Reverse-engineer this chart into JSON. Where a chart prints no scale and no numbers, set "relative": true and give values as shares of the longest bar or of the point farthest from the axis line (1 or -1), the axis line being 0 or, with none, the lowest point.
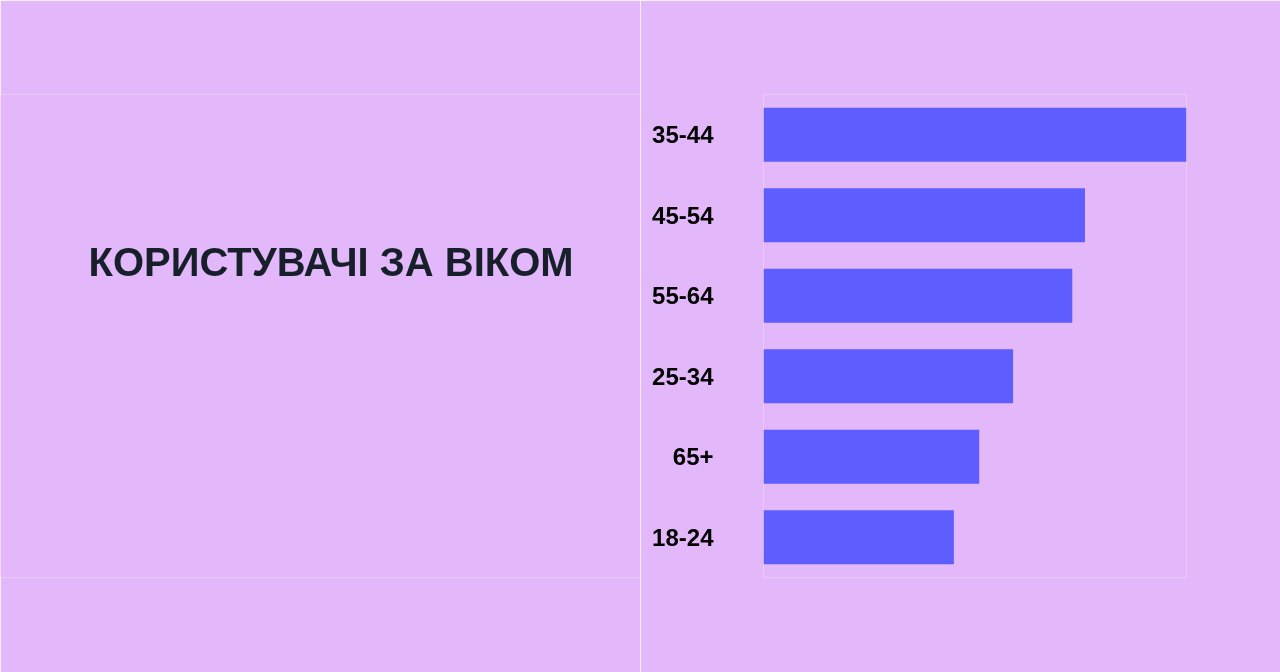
{
  "chart_data": {
    "type": "bar",
    "orientation": "horizontal",
    "relative": true,
    "title": "КОРИСТУВАЧІ ЗА ВІКОМ",
    "categories": [
      "35-44",
      "45-54",
      "55-64",
      "25-34",
      "65+",
      "18-24"
    ],
    "values": [
      1,
      0.76,
      0.73,
      0.59,
      0.51,
      0.45
    ],
    "color": "#5e5dfe"
  }
}
